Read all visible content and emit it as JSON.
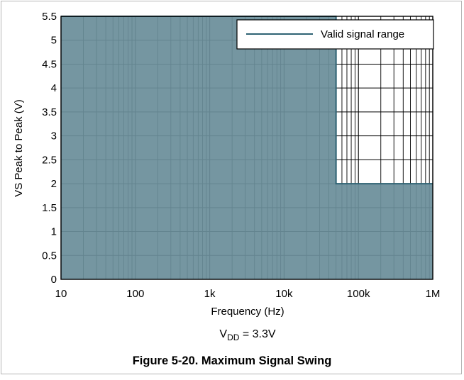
{
  "chart_data": {
    "type": "area",
    "title": "",
    "xlabel": "Frequency (Hz)",
    "ylabel": "VS Peak to Peak (V)",
    "xscale": "log",
    "xlim": [
      10,
      1000000
    ],
    "ylim": [
      0,
      5.5
    ],
    "x_ticks": [
      10,
      100,
      1000,
      10000,
      100000,
      1000000
    ],
    "x_tick_labels": [
      "10",
      "100",
      "1k",
      "10k",
      "100k",
      "1M"
    ],
    "y_ticks": [
      0,
      0.5,
      1,
      1.5,
      2,
      2.5,
      3,
      3.5,
      4,
      4.5,
      5,
      5.5
    ],
    "y_tick_labels": [
      "0",
      "0.5",
      "1",
      "1.5",
      "2",
      "2.5",
      "3",
      "3.5",
      "4",
      "4.5",
      "5",
      "5.5"
    ],
    "grid": true,
    "legend_position": "top-right",
    "series": [
      {
        "name": "Valid signal range",
        "color": "#6a8e9a",
        "line_color": "#2e6273",
        "x": [
          10,
          50000,
          50000,
          1000000
        ],
        "y": [
          5.5,
          5.5,
          2,
          2
        ]
      }
    ]
  },
  "condition": {
    "prefix": "V",
    "subscript": "DD",
    "suffix": " = 3.3V"
  },
  "caption": "Figure 5-20. Maximum Signal Swing"
}
